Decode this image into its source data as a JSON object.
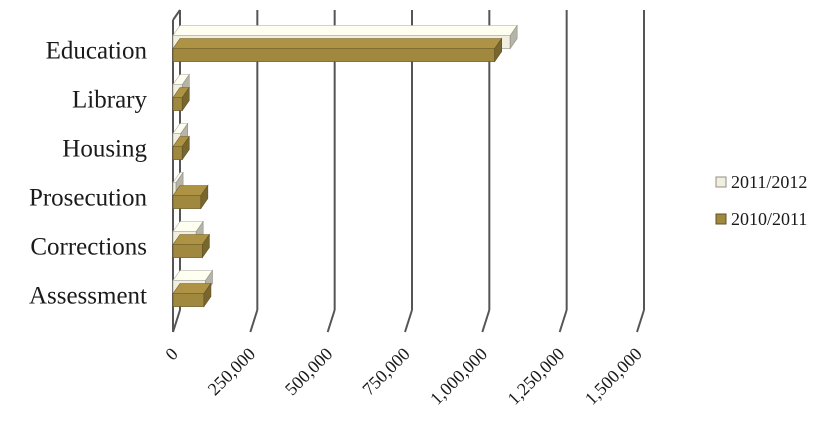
{
  "chart_data": {
    "type": "bar",
    "orientation": "horizontal",
    "three_d": true,
    "categories": [
      "Education",
      "Library",
      "Housing",
      "Prosecution",
      "Corrections",
      "Assessment"
    ],
    "series": [
      {
        "name": "2011/2012",
        "values": [
          1090000,
          30000,
          25000,
          10000,
          75000,
          105000
        ],
        "color": "#f2efdf"
      },
      {
        "name": "2010/2011",
        "values": [
          1040000,
          30000,
          30000,
          90000,
          95000,
          100000
        ],
        "color": "#a0883e"
      }
    ],
    "xlim": [
      0,
      1500000
    ],
    "xticks": [
      0,
      250000,
      500000,
      750000,
      1000000,
      1250000,
      1500000
    ],
    "xtick_labels": [
      "0",
      "250,000",
      "500,000",
      "750,000",
      "1,000,000",
      "1,250,000",
      "1,500,000"
    ],
    "grid": true,
    "legend_position": "right"
  }
}
